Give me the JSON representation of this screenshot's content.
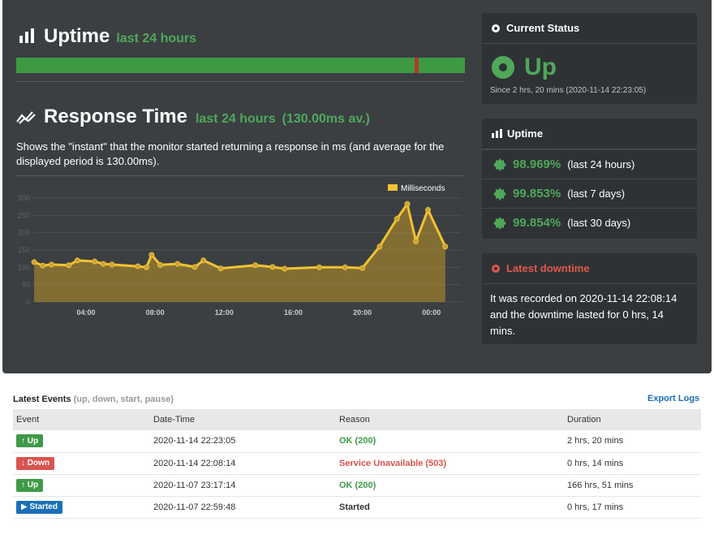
{
  "uptime_header": {
    "title": "Uptime",
    "period": "last 24 hours"
  },
  "uptime_bar": {
    "down_fraction_position": 0.893
  },
  "response_header": {
    "title": "Response Time",
    "period": "last 24 hours",
    "average": "(130.00ms av.)"
  },
  "response_description": "Shows the \"instant\" that the monitor started returning a response in ms (and average for the displayed period is 130.00ms).",
  "chart_data": {
    "type": "area",
    "series": [
      {
        "name": "Milliseconds",
        "color": "#f1c232"
      }
    ],
    "x_ticks": [
      "04:00",
      "08:00",
      "12:00",
      "16:00",
      "20:00",
      "00:00"
    ],
    "y_ticks": [
      "0",
      "50",
      "100",
      "150",
      "200",
      "250",
      "300"
    ],
    "ylim": [
      0,
      300
    ],
    "xlim_hours": [
      0.9,
      25.7
    ],
    "points": [
      [
        1.0,
        115
      ],
      [
        1.5,
        105
      ],
      [
        2.0,
        108
      ],
      [
        3.0,
        106
      ],
      [
        3.5,
        120
      ],
      [
        4.5,
        117
      ],
      [
        5.0,
        110
      ],
      [
        5.5,
        108
      ],
      [
        7.0,
        103
      ],
      [
        7.5,
        100
      ],
      [
        7.8,
        136
      ],
      [
        8.3,
        107
      ],
      [
        9.3,
        110
      ],
      [
        10.3,
        101
      ],
      [
        10.8,
        120
      ],
      [
        11.8,
        97
      ],
      [
        13.8,
        106
      ],
      [
        14.8,
        101
      ],
      [
        15.5,
        96
      ],
      [
        17.5,
        100
      ],
      [
        19.0,
        100
      ],
      [
        20.0,
        98
      ],
      [
        21.0,
        160
      ],
      [
        22.0,
        240
      ],
      [
        22.6,
        283
      ],
      [
        23.1,
        175
      ],
      [
        23.8,
        266
      ],
      [
        24.8,
        160
      ]
    ]
  },
  "current_status": {
    "title": "Current Status",
    "state": "Up",
    "since": "Since 2 hrs, 20 mins (2020-11-14 22:23:05)"
  },
  "uptime_card": {
    "title": "Uptime",
    "rows": [
      {
        "pct": "98.969%",
        "label": "(last 24 hours)"
      },
      {
        "pct": "99.853%",
        "label": "(last 7 days)"
      },
      {
        "pct": "99.854%",
        "label": "(last 30 days)"
      }
    ]
  },
  "latest_downtime": {
    "title": "Latest downtime",
    "text": "It was recorded on 2020-11-14 22:08:14 and the downtime lasted for 0 hrs, 14 mins."
  },
  "events": {
    "title": "Latest Events",
    "subtitle": "(up, down, start, pause)",
    "export_label": "Export Logs",
    "columns": [
      "Event",
      "Date-Time",
      "Reason",
      "Duration"
    ],
    "rows": [
      {
        "event": "Up",
        "type": "up",
        "datetime": "2020-11-14 22:23:05",
        "reason": "OK (200)",
        "duration": "2 hrs, 20 mins"
      },
      {
        "event": "Down",
        "type": "down",
        "datetime": "2020-11-14 22:08:14",
        "reason": "Service Unavailable (503)",
        "duration": "0 hrs, 14 mins"
      },
      {
        "event": "Up",
        "type": "up",
        "datetime": "2020-11-07 23:17:14",
        "reason": "OK (200)",
        "duration": "166 hrs, 51 mins"
      },
      {
        "event": "Started",
        "type": "start",
        "datetime": "2020-11-07 22:59:48",
        "reason": "Started",
        "duration": "0 hrs, 17 mins"
      }
    ]
  }
}
